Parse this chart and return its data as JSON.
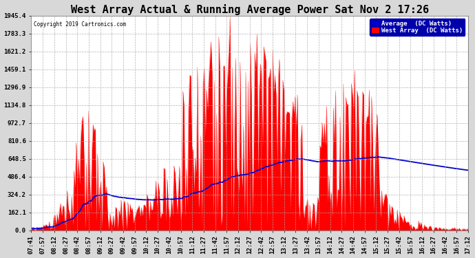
{
  "title": "West Array Actual & Running Average Power Sat Nov 2 17:26",
  "copyright": "Copyright 2019 Cartronics.com",
  "legend_avg": "Average  (DC Watts)",
  "legend_west": "West Array  (DC Watts)",
  "ylim": [
    0,
    1945.4
  ],
  "yticks": [
    0.0,
    162.1,
    324.2,
    486.4,
    648.5,
    810.6,
    972.7,
    1134.8,
    1296.9,
    1459.1,
    1621.2,
    1783.3,
    1945.4
  ],
  "bg_color": "#d8d8d8",
  "plot_bg_color": "#ffffff",
  "grid_color": "#aaaaaa",
  "bar_color": "#ff0000",
  "avg_line_color": "#0000cc",
  "title_fontsize": 11,
  "tick_fontsize": 6.5,
  "xtick_labels": [
    "07:41",
    "07:57",
    "08:12",
    "08:27",
    "08:42",
    "08:57",
    "09:12",
    "09:27",
    "09:42",
    "09:57",
    "10:12",
    "10:27",
    "10:42",
    "10:57",
    "11:12",
    "11:27",
    "11:42",
    "11:57",
    "12:12",
    "12:27",
    "12:42",
    "12:57",
    "13:12",
    "13:27",
    "13:42",
    "13:57",
    "14:12",
    "14:27",
    "14:42",
    "14:57",
    "15:12",
    "15:27",
    "15:42",
    "15:57",
    "16:12",
    "16:27",
    "16:42",
    "16:57",
    "17:12"
  ],
  "n_points": 390
}
